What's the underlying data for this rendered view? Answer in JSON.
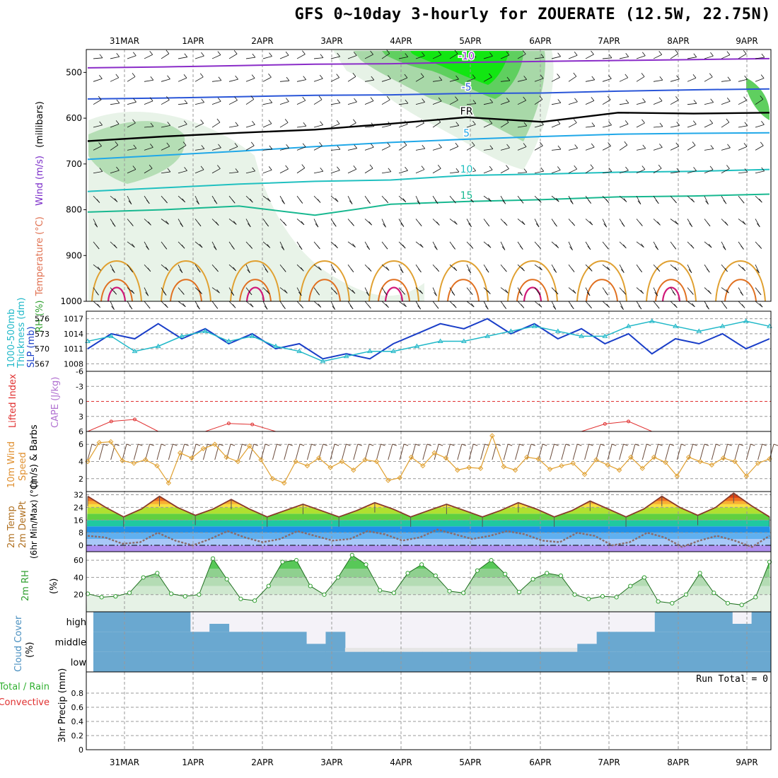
{
  "title": "GFS 0~10day 3-hourly for ZOUERATE (12.5W, 22.75N)",
  "time_axis": {
    "labels": [
      "31MAR",
      "1APR",
      "2APR",
      "3APR",
      "4APR",
      "5APR",
      "6APR",
      "7APR",
      "8APR",
      "9APR"
    ]
  },
  "chart_data": [
    {
      "type": "line",
      "panel": "upper-air",
      "ylabel_parts": [
        "RH (%)",
        "Temperature (°C)",
        "Wind (m/s)",
        "(millibars)"
      ],
      "y_ticks": [
        500,
        600,
        700,
        800,
        900,
        1000
      ],
      "ylim": [
        1000,
        450
      ],
      "series": [
        {
          "name": "-10",
          "color": "#8a2cc8",
          "values": [
            490,
            488,
            485,
            482,
            481,
            478,
            476,
            474,
            472,
            470
          ]
        },
        {
          "name": "-5",
          "color": "#2a56d8",
          "values": [
            558,
            556,
            553,
            550,
            549,
            546,
            545,
            541,
            538,
            536
          ]
        },
        {
          "name": "FR",
          "color": "#000000",
          "values": [
            650,
            640,
            632,
            625,
            612,
            598,
            608,
            588,
            590,
            588
          ]
        },
        {
          "name": "5",
          "color": "#20a8e8",
          "values": [
            690,
            681,
            672,
            662,
            653,
            646,
            640,
            635,
            633,
            632
          ]
        },
        {
          "name": "10",
          "color": "#20c0c0",
          "values": [
            760,
            752,
            744,
            738,
            735,
            725,
            722,
            718,
            716,
            712
          ]
        },
        {
          "name": "15",
          "color": "#18b890",
          "values": [
            805,
            800,
            792,
            812,
            788,
            782,
            778,
            772,
            770,
            766
          ]
        }
      ],
      "contour_labels": [
        "-10",
        "-5",
        "FR",
        "5",
        "10",
        "15"
      ]
    },
    {
      "type": "line",
      "panel": "slp-thickness",
      "ylabel_parts": [
        "1000-500mb",
        "Thickness (dm)",
        "SLP (mb)"
      ],
      "y_ticks_left": [
        567,
        570,
        573,
        576
      ],
      "y_ticks_right": [
        1008,
        1011,
        1014,
        1017
      ],
      "series": [
        {
          "name": "SLP (mb)",
          "color": "#1a3ec8",
          "values": [
            1011,
            1014,
            1013,
            1016,
            1013,
            1015,
            1012,
            1014,
            1011,
            1012,
            1009,
            1010,
            1009,
            1012,
            1014,
            1016,
            1015,
            1017,
            1014,
            1016,
            1013,
            1015,
            1012,
            1014,
            1010,
            1013,
            1012,
            1014,
            1011,
            1013
          ]
        },
        {
          "name": "Thickness (dm)",
          "color": "#20b8c8",
          "values": [
            572,
            573,
            570,
            571,
            573,
            574,
            572,
            573,
            571,
            570,
            568,
            569,
            570,
            570,
            571,
            572,
            572,
            573,
            574,
            575,
            574,
            573,
            573,
            575,
            576,
            575,
            574,
            575,
            576,
            575
          ]
        }
      ]
    },
    {
      "type": "line",
      "panel": "stability",
      "ylabel_parts": [
        "Lifted Index",
        "CAPE (J/kg)"
      ],
      "y_ticks": [
        "-6",
        "-3",
        "0",
        "3",
        "6"
      ],
      "ylim": [
        -6,
        6
      ],
      "series": [
        {
          "name": "Lifted Index",
          "color": "#e03030",
          "values": [
            6.0,
            4.0,
            3.6,
            6.0,
            6.0,
            6.0,
            4.4,
            4.6,
            6.0,
            6.0,
            6.0,
            6.0,
            6.0,
            6.0,
            6.0,
            6.0,
            6.0,
            6.0,
            6.0,
            6.0,
            6.0,
            6.0,
            4.5,
            4.0,
            6.0,
            6.0,
            6.0,
            6.0,
            6.0,
            6.0
          ]
        }
      ]
    },
    {
      "type": "line",
      "panel": "10m-wind",
      "ylabel_parts": [
        "10m Wind",
        "Speed",
        "(m/s) & Barbs"
      ],
      "y_ticks": [
        2,
        4,
        6
      ],
      "ylim": [
        0.5,
        7.5
      ],
      "series": [
        {
          "name": "10m Wind Speed",
          "color": "#e0a030",
          "values": [
            4.0,
            6.2,
            6.3,
            4.1,
            3.8,
            4.2,
            3.5,
            1.5,
            5.0,
            4.4,
            5.5,
            6.0,
            4.5,
            4.0,
            5.8,
            4.2,
            2.0,
            1.5,
            4.0,
            3.5,
            4.4,
            3.3,
            4.0,
            3.0,
            4.2,
            4.0,
            1.8,
            2.1,
            4.5,
            3.5,
            5.0,
            4.4,
            3.0,
            3.3,
            3.2,
            7.0,
            3.4,
            3.0,
            4.5,
            4.3,
            3.1,
            3.5,
            3.8,
            2.5,
            4.2,
            3.6,
            3.0,
            4.5,
            3.2,
            4.5,
            3.9,
            2.3,
            4.5,
            4.0,
            3.6,
            4.4,
            4.0,
            2.3,
            3.8,
            4.3
          ]
        }
      ]
    },
    {
      "type": "area",
      "panel": "2m-temperature",
      "ylabel_parts": [
        "2m Temp",
        "2m DewPt",
        "(6hr Min/Max) (°C)"
      ],
      "y_ticks": [
        0,
        8,
        16,
        24,
        32
      ],
      "ylim": [
        -4,
        34
      ],
      "series": [
        {
          "name": "2m Temp",
          "color": "#8a3a2a",
          "values": [
            31,
            24,
            18,
            23,
            31,
            24,
            19,
            23,
            29,
            23,
            18,
            22,
            26,
            22,
            18,
            22,
            27,
            23,
            18,
            22,
            26,
            22,
            18,
            22,
            27,
            23,
            18,
            22,
            28,
            23,
            18,
            23,
            31,
            24,
            19,
            24,
            33,
            25,
            18
          ]
        },
        {
          "name": "2m DewPt",
          "color": "#8a6a6a",
          "values": [
            6,
            5,
            1,
            2,
            8,
            3,
            0,
            4,
            9,
            5,
            2,
            4,
            9,
            6,
            3,
            4,
            9,
            7,
            3,
            5,
            10,
            7,
            4,
            6,
            9,
            7,
            3,
            2,
            8,
            6,
            0,
            2,
            8,
            5,
            -1,
            3,
            6,
            3,
            -1,
            6
          ]
        }
      ]
    },
    {
      "type": "area",
      "panel": "2m-rh",
      "ylabel_parts": [
        "2m RH",
        "(%)"
      ],
      "y_ticks": [
        20,
        40,
        60
      ],
      "ylim": [
        0,
        70
      ],
      "series": [
        {
          "name": "2m RH",
          "color": "#30a030",
          "values": [
            21,
            17,
            18,
            22,
            40,
            45,
            21,
            18,
            20,
            62,
            38,
            15,
            13,
            30,
            58,
            60,
            30,
            20,
            40,
            66,
            55,
            25,
            22,
            45,
            55,
            42,
            24,
            22,
            48,
            60,
            44,
            23,
            38,
            45,
            42,
            20,
            15,
            18,
            17,
            30,
            40,
            12,
            10,
            20,
            45,
            22,
            10,
            8,
            17,
            58
          ]
        }
      ]
    },
    {
      "type": "heatmap",
      "panel": "cloud-cover",
      "ylabel_parts": [
        "Cloud Cover",
        "(%)"
      ],
      "levels": [
        "high",
        "middle",
        "low"
      ],
      "series": [
        {
          "name": "high",
          "values": [
            100,
            100,
            100,
            100,
            100,
            0,
            40,
            0,
            0,
            0,
            0,
            0,
            0,
            0,
            0,
            0,
            0,
            0,
            0,
            0,
            0,
            0,
            0,
            0,
            0,
            0,
            0,
            0,
            0,
            100,
            100,
            100,
            100,
            40,
            100
          ]
        },
        {
          "name": "middle",
          "values": [
            100,
            100,
            100,
            100,
            100,
            100,
            100,
            100,
            100,
            100,
            100,
            40,
            100,
            20,
            20,
            20,
            20,
            20,
            20,
            20,
            20,
            20,
            20,
            20,
            20,
            40,
            100,
            100,
            100,
            100,
            100,
            100,
            100,
            100,
            100
          ]
        },
        {
          "name": "low",
          "values": [
            100,
            100,
            100,
            100,
            100,
            100,
            100,
            100,
            100,
            100,
            100,
            100,
            100,
            100,
            100,
            100,
            100,
            100,
            100,
            100,
            100,
            100,
            100,
            100,
            100,
            100,
            100,
            100,
            100,
            100,
            100,
            100,
            100,
            100,
            100
          ]
        }
      ]
    },
    {
      "type": "bar",
      "panel": "precipitation",
      "ylabel_parts": [
        "Total / Rain",
        "Convective",
        "3hr Precip (mm)"
      ],
      "y_ticks": [
        "0",
        "0.2",
        "0.4",
        "0.6",
        "0.8"
      ],
      "ylim": [
        0,
        1
      ],
      "annotation": "Run Total = 0",
      "series": [
        {
          "name": "Total / Rain",
          "values": [
            0,
            0,
            0,
            0,
            0,
            0,
            0,
            0,
            0,
            0
          ]
        },
        {
          "name": "Convective",
          "values": [
            0,
            0,
            0,
            0,
            0,
            0,
            0,
            0,
            0,
            0
          ]
        }
      ]
    }
  ],
  "colors": {
    "grid": "#999999",
    "rh_fill": [
      "#e6f2e6",
      "#a8d8a8",
      "#5fcf5f",
      "#12e612"
    ],
    "temp_bands": [
      "#b090f0",
      "#a8c8f8",
      "#60b0f0",
      "#2090e8",
      "#20c8a0",
      "#60d040",
      "#b0e030",
      "#f8e040",
      "#f8b030",
      "#f07020",
      "#e04010"
    ],
    "cloud_fill": "#6aa8d0",
    "cloud_clear": "#f4f2f8",
    "cloud_light": "#e6e6e6"
  }
}
